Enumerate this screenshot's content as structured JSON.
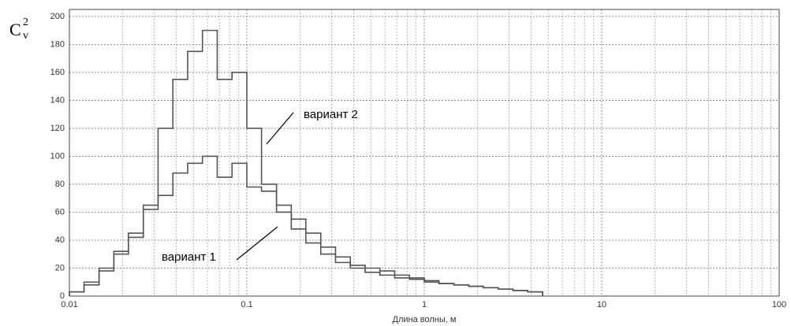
{
  "chart_data": {
    "type": "histogram",
    "ylabel": "C",
    "ylabel_sup": "2",
    "ylabel_sub": "v",
    "xlabel": "Длина волны, м",
    "bins": [
      0.01,
      0.0121,
      0.0147,
      0.0178,
      0.0215,
      0.0261,
      0.0316,
      0.0383,
      0.0464,
      0.0562,
      0.0681,
      0.0825,
      0.1,
      0.121,
      0.147,
      0.178,
      0.215,
      0.261,
      0.316,
      0.383,
      0.464,
      0.562,
      0.681,
      0.825,
      1,
      1.21,
      1.47,
      1.78,
      2.15,
      2.61,
      3.16,
      3.83,
      4.64
    ],
    "series": [
      {
        "name": "вариант 1",
        "color": "#555555",
        "values": [
          3,
          8,
          18,
          30,
          42,
          62,
          72,
          88,
          95,
          100,
          85,
          95,
          78,
          75,
          60,
          55,
          45,
          35,
          28,
          22,
          20,
          18,
          15,
          13,
          11,
          9,
          8,
          7,
          6,
          5,
          4,
          3
        ]
      },
      {
        "name": "вариант 2",
        "color": "#555555",
        "values": [
          3,
          10,
          20,
          32,
          45,
          65,
          120,
          155,
          175,
          190,
          155,
          160,
          120,
          80,
          65,
          48,
          38,
          30,
          24,
          20,
          17,
          15,
          13,
          12,
          10,
          9,
          8,
          7,
          6,
          5,
          4,
          3
        ]
      }
    ],
    "xscale": "log",
    "xlim": [
      0.01,
      100
    ],
    "xticks": [
      0.01,
      0.1,
      1,
      10,
      100
    ],
    "ylim": [
      0,
      205
    ],
    "yticks": [
      0,
      20,
      40,
      60,
      80,
      100,
      120,
      140,
      160,
      180,
      200
    ],
    "grid": true
  }
}
